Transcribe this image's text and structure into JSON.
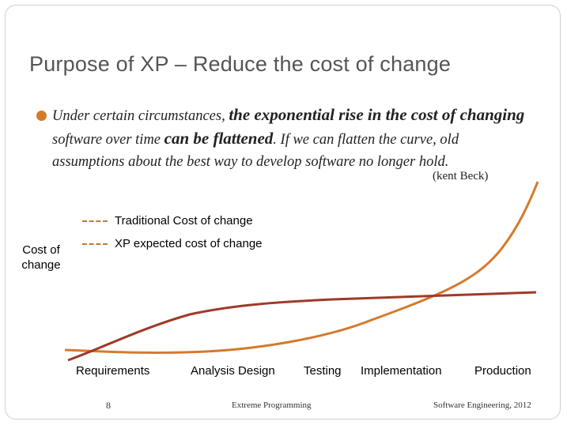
{
  "slide": {
    "title": "Purpose of XP – Reduce the cost of change",
    "bullet": {
      "part1": "Under certain circumstances, ",
      "part2": "the exponential rise in the cost of changing",
      "part3": " software over time ",
      "part4": "can be flattened",
      "part5": ". If we can flatten the curve, old assumptions about the best way to develop software no longer hold.",
      "citation": "(kent Beck)"
    }
  },
  "chart_data": {
    "type": "line",
    "ylabel": "Cost of change",
    "categories": [
      "Requirements",
      "Analysis Design",
      "Testing",
      "Implementation",
      "Production"
    ],
    "series": [
      {
        "name": "Traditional Cost of change",
        "color": "#d57a2c",
        "values": [
          1,
          1.1,
          2.5,
          6,
          19
        ]
      },
      {
        "name": "XP expected cost of change",
        "color": "#9e3a2a",
        "values": [
          0.5,
          5,
          6,
          6.5,
          7
        ]
      }
    ],
    "legend_position": "top-left",
    "grid": false
  },
  "footer": {
    "page_number": "8",
    "center": "Extreme Programming",
    "right": "Software Engineering,  2012"
  }
}
